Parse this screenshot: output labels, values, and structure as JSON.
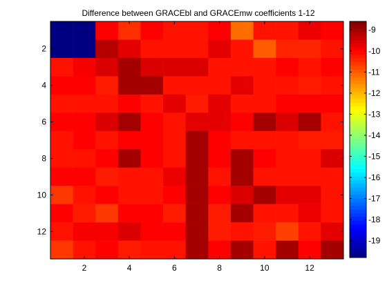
{
  "chart_data": {
    "type": "heatmap",
    "title": "Difference between GRACEbl and GRACEmw coefficients 1-12",
    "xlabel": "",
    "ylabel": "",
    "xlim": [
      0.5,
      13.5
    ],
    "ylim": [
      0.5,
      13.5
    ],
    "x_ticks": [
      2,
      4,
      6,
      8,
      10,
      12
    ],
    "y_ticks": [
      2,
      4,
      6,
      8,
      10,
      12
    ],
    "colormap": "jet",
    "color_range": [
      -19.8,
      -8.6
    ],
    "colorbar_ticks": [
      -9,
      -10,
      -11,
      -12,
      -13,
      -14,
      -15,
      -16,
      -17,
      -18,
      -19
    ],
    "colorbar_location": "right",
    "grid": false,
    "values": [
      [
        -19.8,
        -19.8,
        -10.0,
        -10.5,
        -10.0,
        -10.2,
        -10.2,
        -10.0,
        -11.2,
        -10.2,
        -10.2,
        -9.8,
        -10.0
      ],
      [
        -19.8,
        -19.8,
        -9.2,
        -9.7,
        -10.2,
        -10.2,
        -10.2,
        -9.7,
        -10.2,
        -11.0,
        -10.4,
        -10.4,
        -10.2
      ],
      [
        -10.2,
        -9.9,
        -9.6,
        -9.0,
        -9.6,
        -9.6,
        -9.6,
        -10.2,
        -10.2,
        -10.2,
        -10.0,
        -10.2,
        -10.0
      ],
      [
        -10.0,
        -10.0,
        -10.3,
        -9.0,
        -9.0,
        -10.2,
        -10.2,
        -10.2,
        -9.7,
        -10.2,
        -10.2,
        -10.3,
        -10.2
      ],
      [
        -10.2,
        -10.2,
        -10.2,
        -10.0,
        -10.2,
        -9.7,
        -10.3,
        -9.7,
        -10.2,
        -10.2,
        -10.0,
        -10.0,
        -10.0
      ],
      [
        -10.0,
        -10.0,
        -9.6,
        -9.0,
        -10.0,
        -10.2,
        -9.7,
        -9.7,
        -10.0,
        -9.0,
        -9.6,
        -9.0,
        -10.2
      ],
      [
        -10.2,
        -10.0,
        -10.2,
        -10.0,
        -10.0,
        -10.2,
        -9.0,
        -10.0,
        -10.2,
        -10.2,
        -10.2,
        -10.3,
        -10.3
      ],
      [
        -10.2,
        -10.2,
        -10.0,
        -9.0,
        -10.0,
        -10.2,
        -9.0,
        -10.0,
        -9.0,
        -10.0,
        -10.2,
        -10.2,
        -9.6
      ],
      [
        -10.0,
        -10.0,
        -10.3,
        -10.2,
        -10.2,
        -9.8,
        -9.0,
        -10.2,
        -9.0,
        -10.2,
        -10.2,
        -10.2,
        -10.2
      ],
      [
        -10.6,
        -10.2,
        -10.0,
        -10.2,
        -10.2,
        -10.0,
        -9.0,
        -10.0,
        -9.6,
        -9.0,
        -9.7,
        -9.7,
        -10.2
      ],
      [
        -10.0,
        -10.3,
        -10.6,
        -10.0,
        -10.0,
        -10.3,
        -9.0,
        -10.3,
        -9.0,
        -10.2,
        -10.2,
        -9.8,
        -10.2
      ],
      [
        -10.2,
        -9.9,
        -9.9,
        -9.6,
        -10.0,
        -10.0,
        -9.0,
        -10.3,
        -10.2,
        -10.3,
        -10.7,
        -10.2,
        -9.7
      ],
      [
        -10.6,
        -10.2,
        -10.0,
        -10.3,
        -10.2,
        -10.2,
        -9.0,
        -10.0,
        -9.0,
        -10.2,
        -9.0,
        -10.0,
        -9.0
      ]
    ]
  }
}
